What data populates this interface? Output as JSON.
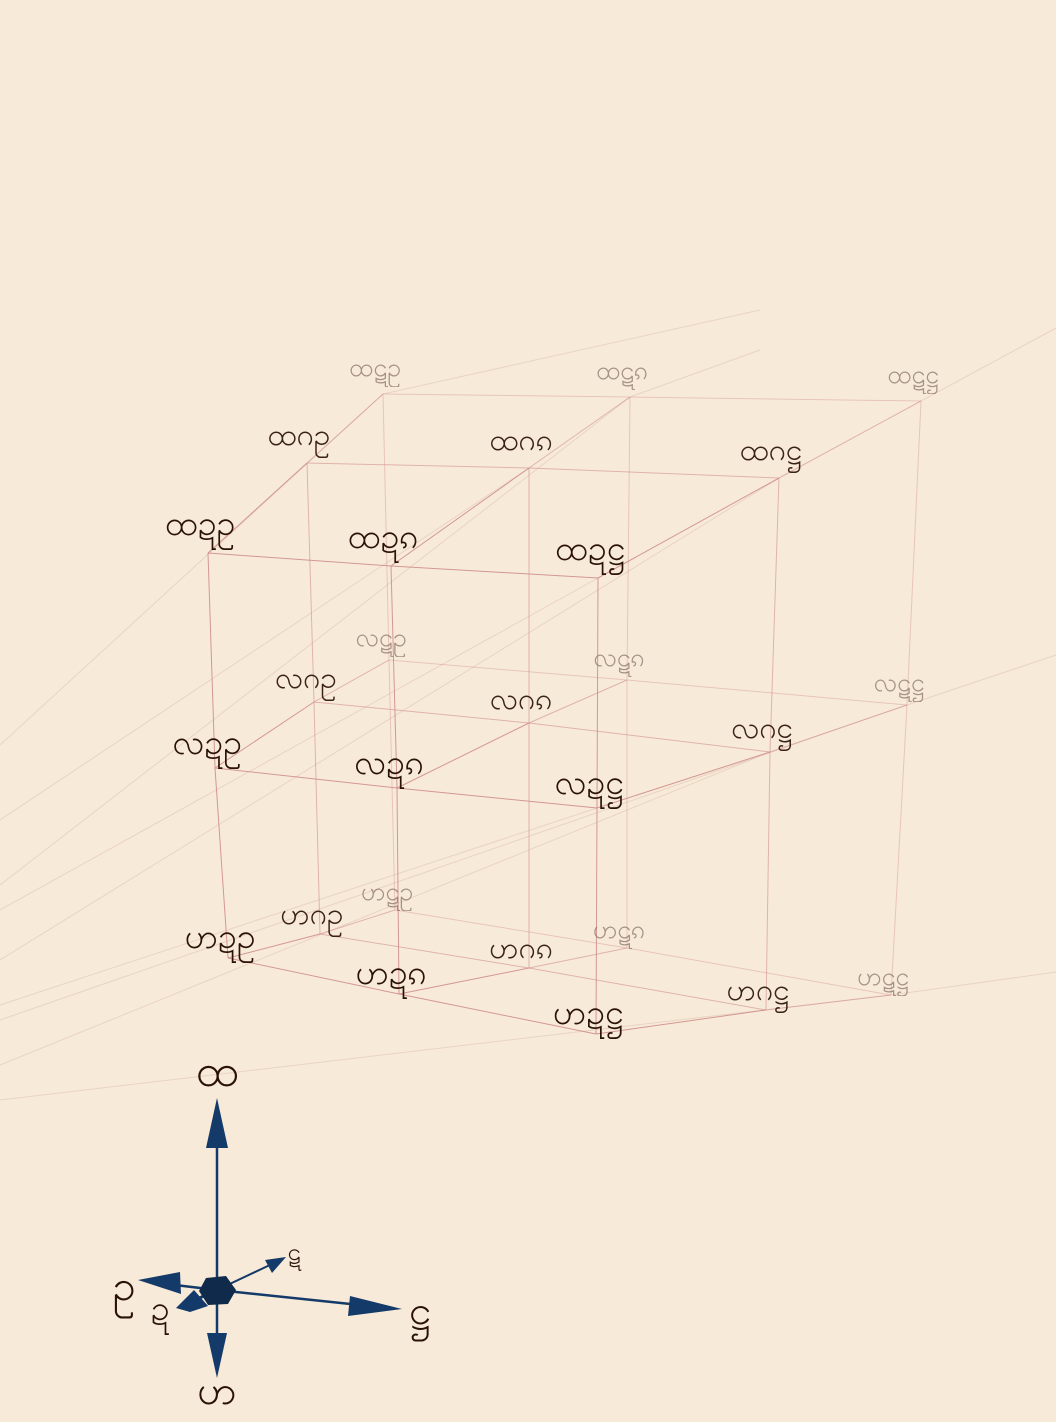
{
  "colors": {
    "background": "#f8ead8",
    "grid_edge": "#cf8f8a",
    "perspective_guide": "#d9b8a6",
    "label_dark": "#2a1208",
    "label_faded": "#8a746a",
    "axis_arrow": "#143a6a",
    "axis_hub": "#0f2a4a"
  },
  "lattice": {
    "levels": [
      "ထ",
      "လ",
      "ဟ"
    ],
    "rows_front_to_back": [
      "ဍ",
      "ဂ",
      "ဋ"
    ],
    "cols_left_to_right": [
      "ဥ",
      "ၵ",
      "ဋ္ဌ"
    ],
    "labels": [
      [
        "ထဍဥ",
        "ထဍၵ",
        "ထဍဋ္ဌ"
      ],
      [
        "ထဂဥ",
        "ထဂၵ",
        "ထဂဋ္ဌ"
      ],
      [
        "ထဋဥ",
        "ထဋၵ",
        "ထဋဋ္ဌ"
      ],
      [
        "လဍဥ",
        "လဍၵ",
        "လဍဋ္ဌ"
      ],
      [
        "လဂဥ",
        "လဂၵ",
        "လဂဋ္ဌ"
      ],
      [
        "လဋဥ",
        "လဋၵ",
        "လဋဋ္ဌ"
      ],
      [
        "ဟဍဥ",
        "ဟဍၵ",
        "ဟဍဋ္ဌ"
      ],
      [
        "ဟဂဥ",
        "ဟဂၵ",
        "ဟဂဋ္ဌ"
      ],
      [
        "ဟဋဥ",
        "ဟဋၵ",
        "ဟဋဋ္ဌ"
      ]
    ]
  },
  "axes": {
    "up": "ထ",
    "down": "ဟ",
    "right": "ဋ္ဌ",
    "left": "ဥ",
    "toward_viewer": "ဍ",
    "away_from_viewer": "ဋ"
  }
}
